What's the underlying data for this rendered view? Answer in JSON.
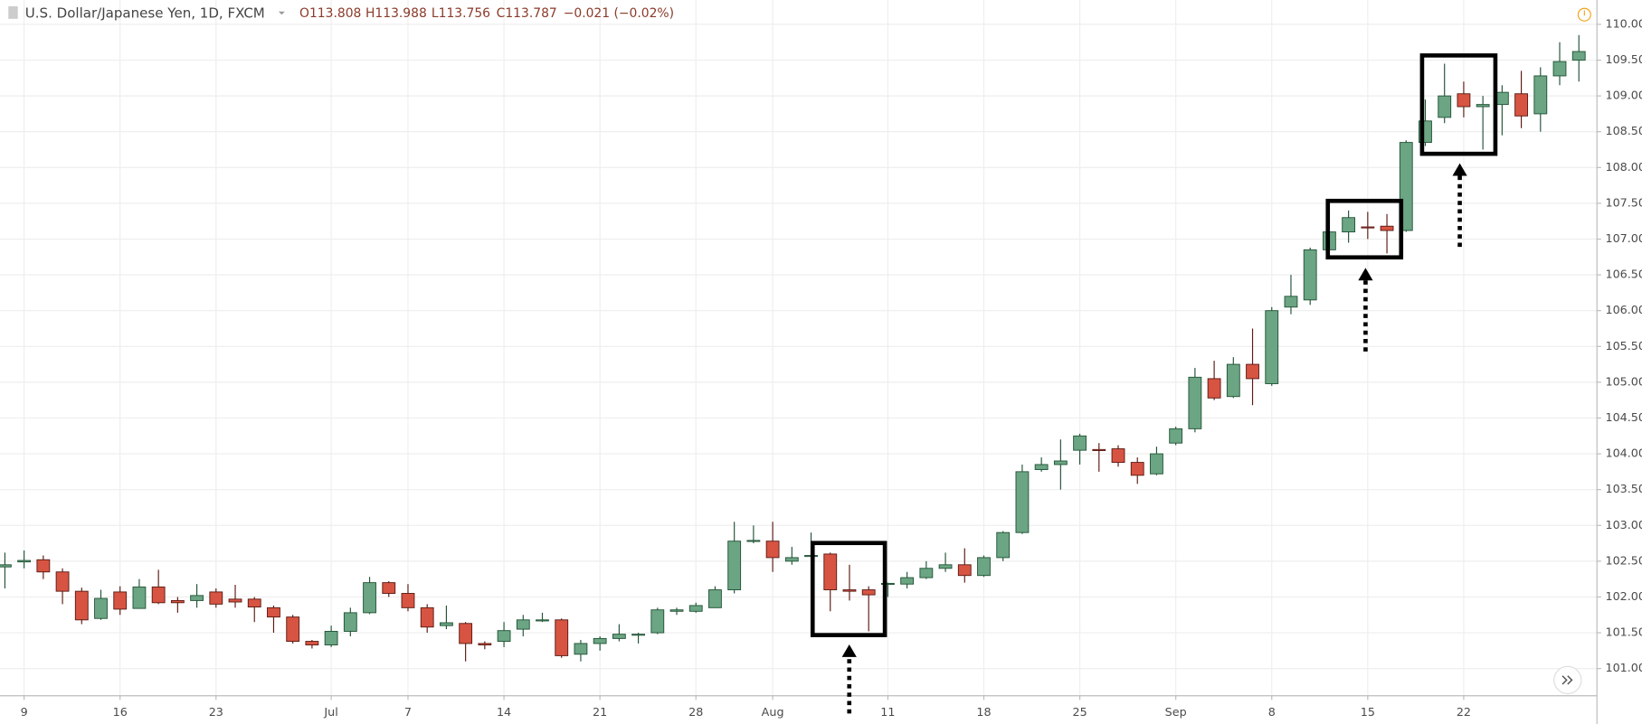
{
  "chart_data": {
    "type": "candlestick",
    "title": "U.S. Dollar/Japanese Yen, 1D, FXCM",
    "legend_values": [
      "O113.808",
      "H113.988",
      "L113.756",
      "C113.787",
      "−0.021 (−0.02%)"
    ],
    "up_color": "#6ba583",
    "up_border": "#225437",
    "down_color": "#d75442",
    "down_border": "#5b1a13",
    "grid": true,
    "categories": [
      null,
      "9",
      null,
      null,
      null,
      null,
      "16",
      null,
      null,
      null,
      null,
      "23",
      null,
      null,
      null,
      null,
      null,
      "Jul",
      null,
      null,
      null,
      "7",
      null,
      null,
      null,
      null,
      "14",
      null,
      null,
      null,
      null,
      "21",
      null,
      null,
      null,
      null,
      "28",
      null,
      null,
      null,
      "Aug",
      null,
      null,
      null,
      null,
      null,
      "11",
      null,
      null,
      null,
      null,
      "18",
      null,
      null,
      null,
      null,
      "25",
      null,
      null,
      null,
      null,
      "Sep",
      null,
      null,
      null,
      null,
      "8",
      null,
      null,
      null,
      null,
      "15",
      null,
      null,
      null,
      null,
      "22",
      null,
      null,
      null,
      null,
      null,
      null
    ],
    "open": [
      102.42,
      102.49,
      102.52,
      102.35,
      102.08,
      101.7,
      102.07,
      101.84,
      102.14,
      101.95,
      101.95,
      102.07,
      101.97,
      101.97,
      101.85,
      101.72,
      101.38,
      101.33,
      101.52,
      101.78,
      102.2,
      102.05,
      101.85,
      101.6,
      101.63,
      101.35,
      101.38,
      101.55,
      101.67,
      101.68,
      101.2,
      101.35,
      101.42,
      101.47,
      101.5,
      101.8,
      101.8,
      101.85,
      102.1,
      102.78,
      102.78,
      102.5,
      102.57,
      102.6,
      102.1,
      102.1,
      102.18,
      102.18,
      102.27,
      102.4,
      102.45,
      102.3,
      102.55,
      102.9,
      103.78,
      103.85,
      104.05,
      104.06,
      104.07,
      103.88,
      103.72,
      104.15,
      104.35,
      105.05,
      104.8,
      105.25,
      104.98,
      106.05,
      106.15,
      106.85,
      107.1,
      107.17,
      107.18,
      107.12,
      108.35,
      108.7,
      109.03,
      108.85,
      108.88,
      109.03,
      108.75,
      109.28,
      109.5
    ],
    "high": [
      102.62,
      102.65,
      102.58,
      102.4,
      102.13,
      102.1,
      102.15,
      102.25,
      102.38,
      102.0,
      102.18,
      102.12,
      102.17,
      102.0,
      101.88,
      101.75,
      101.4,
      101.6,
      101.85,
      102.28,
      102.22,
      102.18,
      101.9,
      101.88,
      101.65,
      101.38,
      101.65,
      101.75,
      101.78,
      101.7,
      101.4,
      101.45,
      101.62,
      101.5,
      101.85,
      101.85,
      101.92,
      102.15,
      103.05,
      103.0,
      103.05,
      102.7,
      102.9,
      102.62,
      102.45,
      102.15,
      102.2,
      102.35,
      102.5,
      102.62,
      102.68,
      102.58,
      102.92,
      103.85,
      103.95,
      104.2,
      104.28,
      104.15,
      104.12,
      103.95,
      104.1,
      104.38,
      105.2,
      105.3,
      105.35,
      105.75,
      106.05,
      106.5,
      106.88,
      107.12,
      107.4,
      107.38,
      107.35,
      108.38,
      108.95,
      109.45,
      109.2,
      109.0,
      109.15,
      109.35,
      109.4,
      109.75,
      109.85
    ],
    "low": [
      102.12,
      102.4,
      102.25,
      101.9,
      101.62,
      101.68,
      101.75,
      101.84,
      101.9,
      101.78,
      101.85,
      101.85,
      101.85,
      101.65,
      101.5,
      101.35,
      101.28,
      101.3,
      101.45,
      101.76,
      102.0,
      101.8,
      101.5,
      101.55,
      101.1,
      101.27,
      101.3,
      101.45,
      101.65,
      101.15,
      101.1,
      101.25,
      101.38,
      101.35,
      101.48,
      101.75,
      101.78,
      101.85,
      102.05,
      102.75,
      102.35,
      102.45,
      102.55,
      101.8,
      101.95,
      101.52,
      102.0,
      102.12,
      102.25,
      102.35,
      102.2,
      102.28,
      102.5,
      102.88,
      103.75,
      103.5,
      103.85,
      103.75,
      103.82,
      103.58,
      103.7,
      104.12,
      104.3,
      104.75,
      104.78,
      104.68,
      104.95,
      105.95,
      106.08,
      106.72,
      106.95,
      107.0,
      106.8,
      107.1,
      108.3,
      108.62,
      108.7,
      108.25,
      108.45,
      108.55,
      108.5,
      109.15,
      109.2
    ],
    "close": [
      102.45,
      102.51,
      102.35,
      102.08,
      101.68,
      101.98,
      101.83,
      102.14,
      101.92,
      101.92,
      102.02,
      101.9,
      101.93,
      101.86,
      101.72,
      101.38,
      101.33,
      101.52,
      101.78,
      102.2,
      102.05,
      101.85,
      101.58,
      101.64,
      101.35,
      101.33,
      101.53,
      101.68,
      101.68,
      101.18,
      101.35,
      101.42,
      101.48,
      101.48,
      101.82,
      101.82,
      101.88,
      102.1,
      102.78,
      102.79,
      102.55,
      102.55,
      102.58,
      102.1,
      102.08,
      102.03,
      102.19,
      102.27,
      102.4,
      102.45,
      102.3,
      102.55,
      102.9,
      103.75,
      103.85,
      103.9,
      104.25,
      104.05,
      103.88,
      103.7,
      104.0,
      104.35,
      105.07,
      104.78,
      105.25,
      105.05,
      106.0,
      106.2,
      106.85,
      107.1,
      107.3,
      107.16,
      107.12,
      108.35,
      108.65,
      109.0,
      108.85,
      108.88,
      109.05,
      108.72,
      109.28,
      109.48,
      109.62
    ],
    "ylim": [
      100.62,
      110.34
    ],
    "yticks": [
      {
        "value": 101,
        "label": "101.000"
      },
      {
        "value": 101.5,
        "label": "101.500"
      },
      {
        "value": 102,
        "label": "102.000"
      },
      {
        "value": 102.5,
        "label": "102.500"
      },
      {
        "value": 103,
        "label": "103.000"
      },
      {
        "value": 103.5,
        "label": "103.500"
      },
      {
        "value": 104,
        "label": "104.000"
      },
      {
        "value": 104.5,
        "label": "104.500"
      },
      {
        "value": 105,
        "label": "105.000"
      },
      {
        "value": 105.5,
        "label": "105.500"
      },
      {
        "value": 106,
        "label": "106.000"
      },
      {
        "value": 106.5,
        "label": "106.500"
      },
      {
        "value": 107,
        "label": "107.000"
      },
      {
        "value": 107.5,
        "label": "107.500"
      },
      {
        "value": 108,
        "label": "108.000"
      },
      {
        "value": 108.5,
        "label": "108.500"
      },
      {
        "value": 109,
        "label": "109.000"
      },
      {
        "value": 109.5,
        "label": "109.500"
      },
      {
        "value": 110,
        "label": "110.000"
      }
    ]
  }
}
